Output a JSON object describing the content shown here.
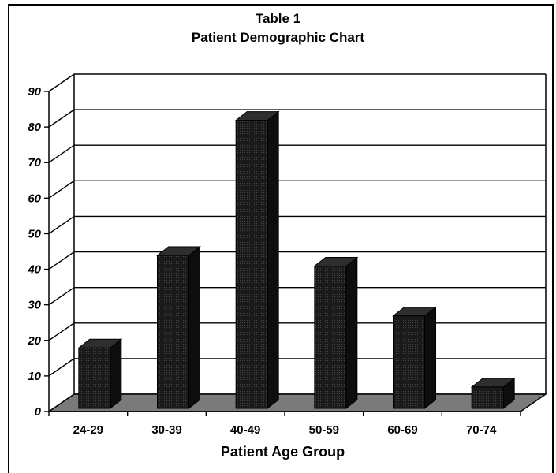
{
  "chart_data": {
    "type": "bar",
    "title": "Table 1",
    "subtitle": "Patient Demographic Chart",
    "xlabel": "Patient Age Group",
    "ylabel": "",
    "categories": [
      "24-29",
      "30-39",
      "40-49",
      "50-59",
      "60-69",
      "70-74"
    ],
    "values": [
      17,
      43,
      81,
      40,
      26,
      6
    ],
    "ylim": [
      0,
      90
    ],
    "yticks": [
      "0",
      "10",
      "20",
      "30",
      "40",
      "50",
      "60",
      "70",
      "80",
      "90"
    ],
    "grid": true,
    "style": "3d",
    "colors": {
      "bar": "#1a1a1a",
      "floor": "#7a7a7a",
      "grid": "#000000"
    }
  }
}
